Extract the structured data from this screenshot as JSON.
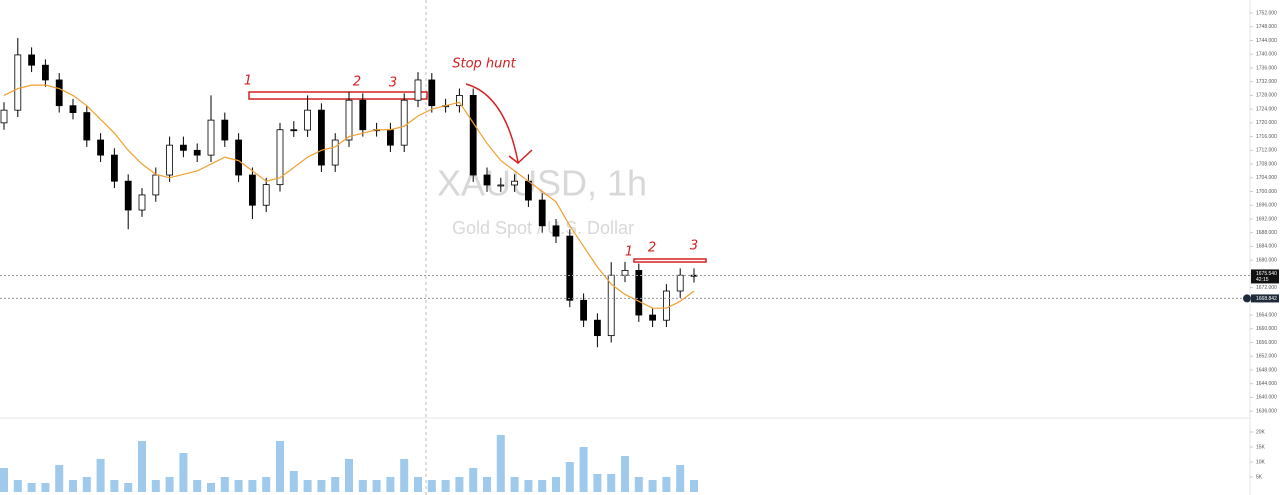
{
  "chart_data": {
    "type": "candlestick",
    "title": "XAUUSD, 1h",
    "subtitle": "Gold Spot / U.S. Dollar",
    "open": [
      1720,
      1723.7,
      1739.8,
      1736.8,
      1732.5,
      1725,
      1723,
      1715,
      1710.6,
      1703,
      1694.6,
      1699,
      1704.8,
      1713.5,
      1712,
      1710.6,
      1720.8,
      1715,
      1704.8,
      1696,
      1702,
      1718,
      1717.9,
      1723.7,
      1707.7,
      1715,
      1726.6,
      1718,
      1718,
      1713.5,
      1726.6,
      1732.5,
      1725,
      1725,
      1728,
      1704.8,
      1701.9,
      1701.9,
      1703,
      1697.5,
      1690,
      1687,
      1668.3,
      1662.5,
      1658,
      1675.6,
      1677,
      1664,
      1662.5,
      1671,
      1675.6
    ],
    "high": [
      1726,
      1744.7,
      1742,
      1738.5,
      1734.5,
      1727,
      1725,
      1717,
      1712.6,
      1705,
      1701,
      1707,
      1716,
      1716,
      1714,
      1728,
      1723,
      1717,
      1707,
      1704,
      1720,
      1720.5,
      1728,
      1725.7,
      1717,
      1729,
      1728.6,
      1720,
      1720,
      1728.6,
      1734.8,
      1734.5,
      1727,
      1730,
      1730,
      1707,
      1704,
      1705,
      1705,
      1699.5,
      1692,
      1689,
      1670.3,
      1664.5,
      1679.4,
      1679.5,
      1679,
      1666,
      1673,
      1677.6,
      1677.6
    ],
    "low": [
      1718,
      1721.7,
      1734.8,
      1730.5,
      1723,
      1721,
      1713,
      1708.6,
      1701,
      1689,
      1692.6,
      1697,
      1702.8,
      1710,
      1708.6,
      1708.6,
      1713,
      1702.8,
      1692,
      1694,
      1700,
      1715.9,
      1715.9,
      1705.7,
      1705.7,
      1713,
      1716,
      1716,
      1711.5,
      1711.5,
      1724.6,
      1723,
      1723,
      1723,
      1702.8,
      1699.9,
      1699.9,
      1699.9,
      1695.5,
      1688,
      1685,
      1666.3,
      1660.5,
      1654.6,
      1656,
      1673.6,
      1662,
      1660.5,
      1660.5,
      1669,
      1673.5
    ],
    "close": [
      1723.7,
      1739.8,
      1736.8,
      1732.5,
      1725,
      1723,
      1715,
      1710.6,
      1703,
      1694.6,
      1699,
      1704.8,
      1713.5,
      1712,
      1710.6,
      1720.8,
      1715,
      1704.8,
      1696,
      1702,
      1718,
      1717.9,
      1723.7,
      1707.7,
      1715,
      1726.6,
      1718,
      1718,
      1713.5,
      1726.6,
      1732.5,
      1725,
      1725,
      1728,
      1704.8,
      1701.9,
      1701.9,
      1703,
      1697.5,
      1690,
      1687,
      1668.3,
      1662.5,
      1658,
      1675.6,
      1677,
      1664,
      1662.5,
      1671,
      1675.6,
      1675.54
    ],
    "up_color": "#ffffff",
    "down_color": "#000000",
    "wick_color": "#000000",
    "ma": {
      "color": "#f0a030",
      "values": [
        1728,
        1730,
        1731,
        1731,
        1730,
        1728,
        1725,
        1721,
        1717,
        1712,
        1708,
        1705,
        1704,
        1705,
        1706,
        1708,
        1710,
        1709,
        1706,
        1703,
        1704,
        1707,
        1710,
        1712,
        1713,
        1716,
        1717,
        1718,
        1718,
        1719,
        1722,
        1724,
        1725,
        1726,
        1720,
        1714,
        1709,
        1706,
        1703,
        1700,
        1697,
        1690,
        1684,
        1678,
        1673,
        1670,
        1668,
        1666,
        1666,
        1668,
        1671
      ]
    },
    "volume": {
      "color": "#8fc1e8",
      "values": [
        8,
        4,
        3,
        3,
        9,
        4,
        5,
        11,
        4,
        3,
        17,
        4,
        5,
        13,
        4,
        3,
        5,
        4,
        4,
        5,
        17,
        7,
        4,
        4,
        5,
        11,
        4,
        4,
        5,
        11,
        5,
        4,
        4,
        5,
        8,
        5,
        19,
        5,
        4,
        4,
        5,
        10,
        15,
        6,
        6,
        12,
        5,
        4,
        5,
        9,
        4
      ]
    },
    "ylim": [
      1634,
      1755.8
    ],
    "yticks": [
      {
        "value": 1636,
        "label": "1636.000"
      },
      {
        "value": 1640,
        "label": "1640.000"
      },
      {
        "value": 1644,
        "label": "1644.000"
      },
      {
        "value": 1648,
        "label": "1648.000"
      },
      {
        "value": 1652,
        "label": "1652.000"
      },
      {
        "value": 1656,
        "label": "1656.000"
      },
      {
        "value": 1660,
        "label": "1660.000"
      },
      {
        "value": 1664,
        "label": "1664.000"
      },
      {
        "value": 1668,
        "label": "1668.000"
      },
      {
        "value": 1672,
        "label": "1672.000"
      },
      {
        "value": 1676,
        "label": "1676.000"
      },
      {
        "value": 1680,
        "label": "1680.000"
      },
      {
        "value": 1684,
        "label": "1684.000"
      },
      {
        "value": 1688,
        "label": "1688.000"
      },
      {
        "value": 1692,
        "label": "1692.000"
      },
      {
        "value": 1696,
        "label": "1696.000"
      },
      {
        "value": 1700,
        "label": "1700.000"
      },
      {
        "value": 1704,
        "label": "1704.000"
      },
      {
        "value": 1708,
        "label": "1708.000"
      },
      {
        "value": 1712,
        "label": "1712.000"
      },
      {
        "value": 1716,
        "label": "1716.000"
      },
      {
        "value": 1720,
        "label": "1720.000"
      },
      {
        "value": 1724,
        "label": "1724.000"
      },
      {
        "value": 1728,
        "label": "1728.000"
      },
      {
        "value": 1732,
        "label": "1732.000"
      },
      {
        "value": 1736,
        "label": "1736.000"
      },
      {
        "value": 1740,
        "label": "1740.000"
      },
      {
        "value": 1744,
        "label": "1744.000"
      },
      {
        "value": 1748,
        "label": "1748.000"
      },
      {
        "value": 1752,
        "label": "1752.000"
      }
    ],
    "volume_ylim": [
      0,
      24
    ],
    "volume_yticks": [
      {
        "value": 5,
        "label": "5K"
      },
      {
        "value": 10,
        "label": "10K"
      },
      {
        "value": 15,
        "label": "15K"
      },
      {
        "value": 20,
        "label": "20K"
      }
    ],
    "last_price": {
      "value": 1675.54,
      "label": "1675.540"
    },
    "countdown": "42:15",
    "marker_price": {
      "value": 1668.842,
      "label": "1668.842"
    },
    "annotations": [
      "1",
      "2",
      "3",
      "Stop hunt",
      "1",
      "2",
      "3"
    ]
  }
}
